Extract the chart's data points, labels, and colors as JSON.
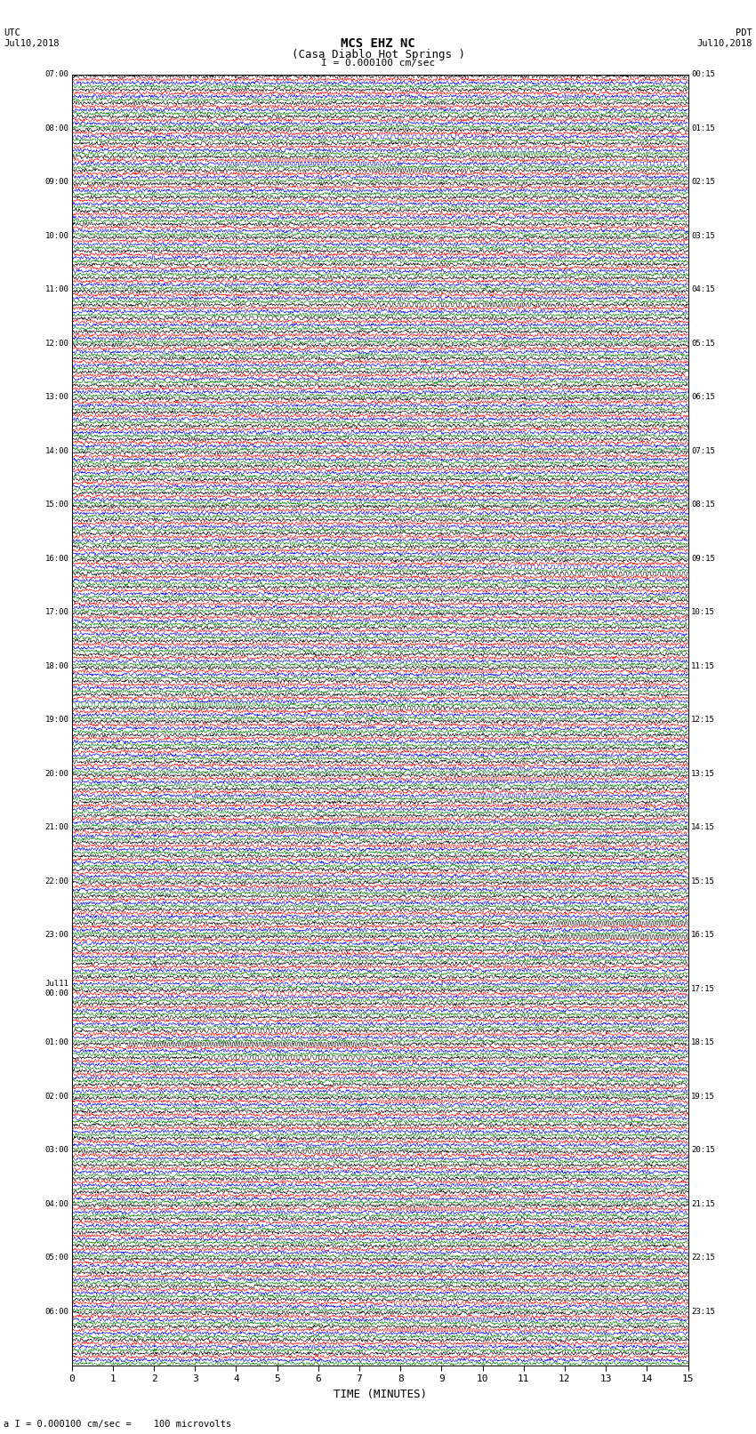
{
  "title_line1": "MCS EHZ NC",
  "title_line2": "(Casa Diablo Hot Springs )",
  "scale_label": "I = 0.000100 cm/sec",
  "utc_label": "UTC\nJul10,2018",
  "pdt_label": "PDT\nJul10,2018",
  "bottom_label": "a I = 0.000100 cm/sec =    100 microvolts",
  "xlabel": "TIME (MINUTES)",
  "num_rows": 96,
  "minutes_per_row": 15,
  "trace_colors": [
    "black",
    "red",
    "blue",
    "green"
  ],
  "bg_color": "#ffffff",
  "left_labels": [
    "07:00",
    "",
    "",
    "",
    "08:00",
    "",
    "",
    "",
    "09:00",
    "",
    "",
    "",
    "10:00",
    "",
    "",
    "",
    "11:00",
    "",
    "",
    "",
    "12:00",
    "",
    "",
    "",
    "13:00",
    "",
    "",
    "",
    "14:00",
    "",
    "",
    "",
    "15:00",
    "",
    "",
    "",
    "16:00",
    "",
    "",
    "",
    "17:00",
    "",
    "",
    "",
    "18:00",
    "",
    "",
    "",
    "19:00",
    "",
    "",
    "",
    "20:00",
    "",
    "",
    "",
    "21:00",
    "",
    "",
    "",
    "22:00",
    "",
    "",
    "",
    "23:00",
    "",
    "",
    "",
    "Jul11\n00:00",
    "",
    "",
    "",
    "01:00",
    "",
    "",
    "",
    "02:00",
    "",
    "",
    "",
    "03:00",
    "",
    "",
    "",
    "04:00",
    "",
    "",
    "",
    "05:00",
    "",
    "",
    "",
    "06:00",
    "",
    "",
    ""
  ],
  "right_labels": [
    "00:15",
    "",
    "",
    "",
    "01:15",
    "",
    "",
    "",
    "02:15",
    "",
    "",
    "",
    "03:15",
    "",
    "",
    "",
    "04:15",
    "",
    "",
    "",
    "05:15",
    "",
    "",
    "",
    "06:15",
    "",
    "",
    "",
    "07:15",
    "",
    "",
    "",
    "08:15",
    "",
    "",
    "",
    "09:15",
    "",
    "",
    "",
    "10:15",
    "",
    "",
    "",
    "11:15",
    "",
    "",
    "",
    "12:15",
    "",
    "",
    "",
    "13:15",
    "",
    "",
    "",
    "14:15",
    "",
    "",
    "",
    "15:15",
    "",
    "",
    "",
    "16:15",
    "",
    "",
    "",
    "17:15",
    "",
    "",
    "",
    "18:15",
    "",
    "",
    "",
    "19:15",
    "",
    "",
    "",
    "20:15",
    "",
    "",
    "",
    "21:15",
    "",
    "",
    "",
    "22:15",
    "",
    "",
    "",
    "23:15",
    "",
    "",
    ""
  ],
  "xticks": [
    0,
    1,
    2,
    3,
    4,
    5,
    6,
    7,
    8,
    9,
    10,
    11,
    12,
    13,
    14,
    15
  ],
  "noise_seed": 42,
  "fig_width": 8.5,
  "fig_height": 16.13,
  "special_events": [
    [
      4,
      2,
      12,
      0.55,
      0.04
    ],
    [
      5,
      2,
      8,
      0.72,
      0.05
    ],
    [
      5,
      3,
      6,
      0.72,
      0.04
    ],
    [
      6,
      1,
      4,
      0.38,
      0.04
    ],
    [
      6,
      2,
      25,
      0.38,
      0.06
    ],
    [
      6,
      2,
      20,
      0.96,
      0.05
    ],
    [
      7,
      0,
      5,
      0.55,
      0.04
    ],
    [
      17,
      0,
      12,
      0.62,
      0.06
    ],
    [
      17,
      0,
      8,
      0.67,
      0.05
    ],
    [
      18,
      0,
      6,
      0.3,
      0.05
    ],
    [
      22,
      1,
      4,
      0.6,
      0.04
    ],
    [
      36,
      2,
      8,
      0.78,
      0.05
    ],
    [
      37,
      0,
      15,
      0.93,
      0.07
    ],
    [
      44,
      1,
      5,
      0.63,
      0.04
    ],
    [
      45,
      1,
      4,
      0.3,
      0.04
    ],
    [
      46,
      3,
      20,
      0.12,
      0.08
    ],
    [
      46,
      3,
      15,
      0.18,
      0.06
    ],
    [
      47,
      0,
      6,
      0.55,
      0.04
    ],
    [
      48,
      3,
      5,
      0.4,
      0.04
    ],
    [
      52,
      1,
      8,
      0.7,
      0.05
    ],
    [
      53,
      2,
      6,
      0.72,
      0.05
    ],
    [
      54,
      1,
      6,
      0.85,
      0.05
    ],
    [
      55,
      1,
      5,
      0.5,
      0.04
    ],
    [
      56,
      0,
      5,
      0.38,
      0.04
    ],
    [
      57,
      1,
      4,
      0.6,
      0.04
    ],
    [
      60,
      2,
      5,
      0.35,
      0.04
    ],
    [
      63,
      0,
      22,
      0.93,
      0.07
    ],
    [
      64,
      0,
      18,
      0.93,
      0.06
    ],
    [
      67,
      1,
      5,
      0.42,
      0.04
    ],
    [
      68,
      1,
      5,
      0.35,
      0.04
    ],
    [
      71,
      0,
      8,
      0.3,
      0.05
    ],
    [
      72,
      0,
      30,
      0.3,
      0.08
    ],
    [
      72,
      0,
      20,
      0.33,
      0.06
    ],
    [
      73,
      0,
      15,
      0.36,
      0.06
    ],
    [
      76,
      1,
      5,
      0.55,
      0.04
    ],
    [
      80,
      0,
      6,
      0.42,
      0.04
    ],
    [
      84,
      1,
      6,
      0.6,
      0.04
    ],
    [
      91,
      1,
      5,
      0.58,
      0.04
    ],
    [
      92,
      2,
      5,
      0.65,
      0.04
    ],
    [
      93,
      1,
      8,
      0.58,
      0.05
    ]
  ]
}
